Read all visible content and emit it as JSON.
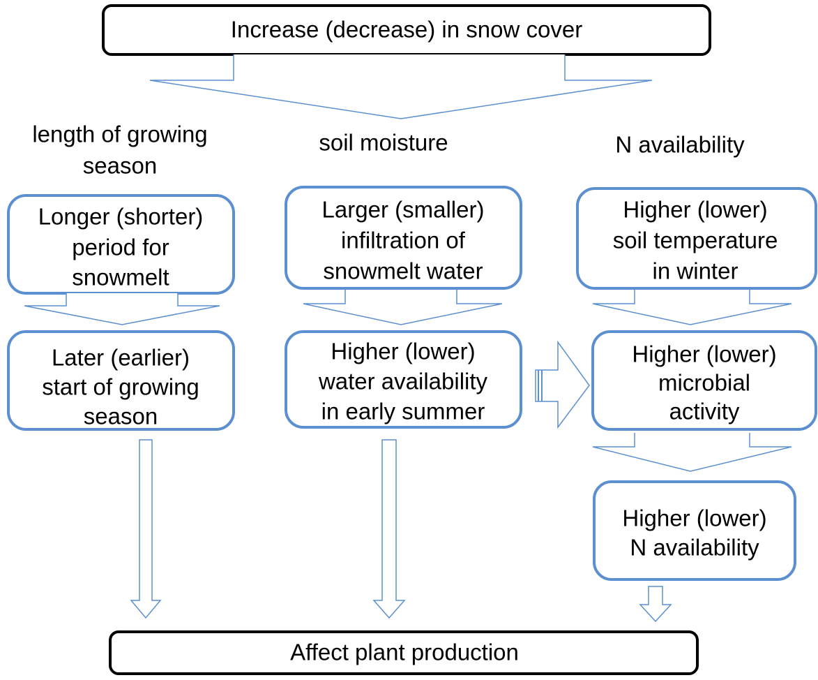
{
  "title": "Increase (decrease) in snow cover",
  "headers": [
    [
      "length of growing",
      "season"
    ],
    [
      "soil moisture"
    ],
    [
      "N availability"
    ]
  ],
  "nodes": [
    {
      "lines": [
        "Longer (shorter)",
        "period for",
        "snowmelt"
      ]
    },
    {
      "lines": [
        "Larger (smaller)",
        "infiltration of",
        "snowmelt water"
      ]
    },
    {
      "lines": [
        "Higher (lower)",
        "soil temperature",
        "in winter"
      ]
    },
    {
      "lines": [
        "Later (earlier)",
        "start of growing",
        "season"
      ]
    },
    {
      "lines": [
        "Higher (lower)",
        "water availability",
        "in early summer"
      ]
    },
    {
      "lines": [
        "Higher (lower)",
        "microbial",
        "activity"
      ]
    },
    {
      "lines": [
        "Higher (lower)",
        "N availability"
      ]
    }
  ],
  "result": "Affect plant production"
}
